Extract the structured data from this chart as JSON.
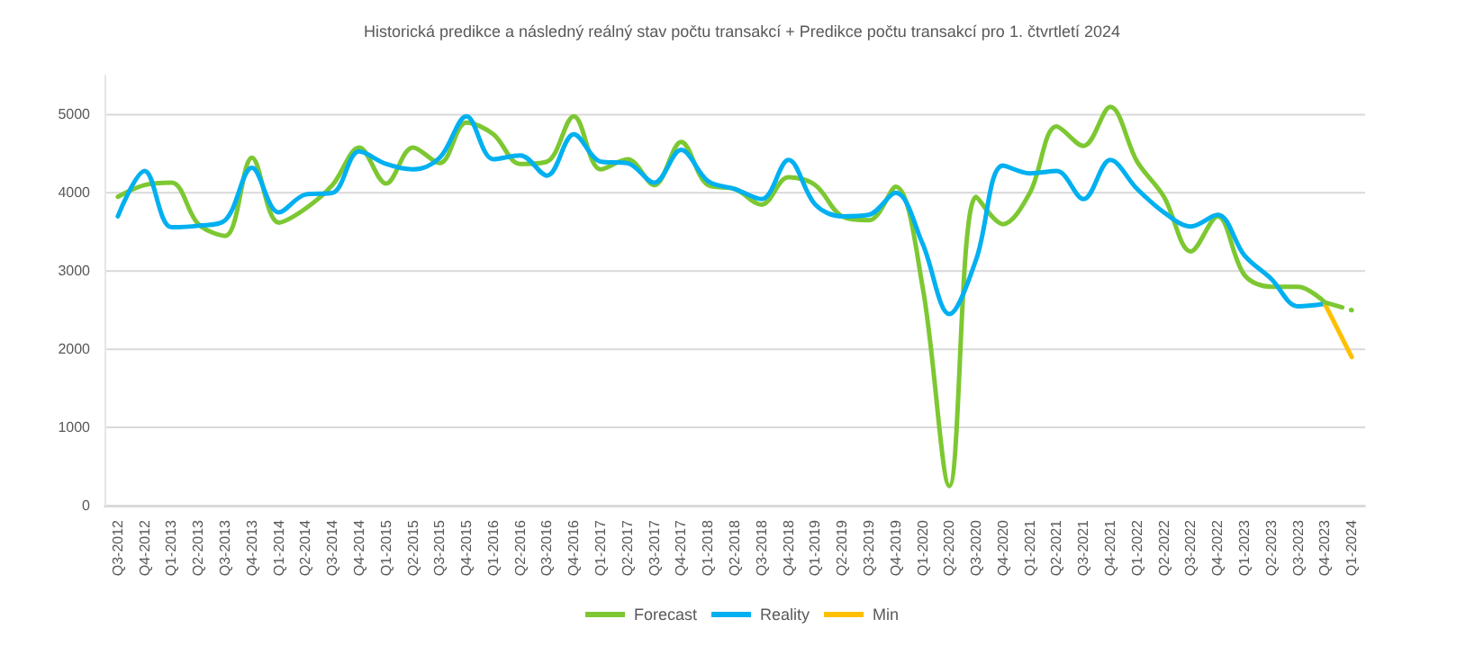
{
  "chart_data": {
    "type": "line",
    "title": "Historická predikce a následný reálný stav počtu transakcí + Predikce počtu transakcí pro 1. čtvrtletí 2024",
    "categories": [
      "Q3-2012",
      "Q4-2012",
      "Q1-2013",
      "Q2-2013",
      "Q3-2013",
      "Q4-2013",
      "Q1-2014",
      "Q2-2014",
      "Q3-2014",
      "Q4-2014",
      "Q1-2015",
      "Q2-2015",
      "Q3-2015",
      "Q4-2015",
      "Q1-2016",
      "Q2-2016",
      "Q3-2016",
      "Q4-2016",
      "Q1-2017",
      "Q2-2017",
      "Q3-2017",
      "Q4-2017",
      "Q1-2018",
      "Q2-2018",
      "Q3-2018",
      "Q4-2018",
      "Q1-2019",
      "Q2-2019",
      "Q3-2019",
      "Q4-2019",
      "Q1-2020",
      "Q2-2020",
      "Q3-2020",
      "Q4-2020",
      "Q1-2021",
      "Q2-2021",
      "Q3-2021",
      "Q4-2021",
      "Q1-2022",
      "Q2-2022",
      "Q3-2022",
      "Q4-2022",
      "Q1-2023",
      "Q2-2023",
      "Q3-2023",
      "Q4-2023",
      "Q1-2024"
    ],
    "series": [
      {
        "name": "Forecast",
        "color": "#7dc832",
        "line_style": "solid",
        "values": [
          3950,
          4100,
          4130,
          3600,
          3450,
          4450,
          3620,
          3800,
          4100,
          4580,
          4120,
          4580,
          4380,
          4900,
          4750,
          4370,
          4400,
          4980,
          4300,
          4430,
          4100,
          4650,
          4100,
          4050,
          3850,
          4200,
          4100,
          3700,
          3650,
          4080,
          2800,
          250,
          3950,
          3600,
          4000,
          4850,
          4600,
          5100,
          4400,
          3950,
          3250,
          3700,
          2950,
          2800,
          2800,
          2600,
          null
        ]
      },
      {
        "name": "Reality",
        "color": "#00b0f0",
        "line_style": "solid",
        "values": [
          3700,
          4280,
          3560,
          3580,
          3650,
          4320,
          3750,
          3980,
          4000,
          4530,
          4370,
          4300,
          4450,
          4980,
          4430,
          4480,
          4220,
          4750,
          4400,
          4380,
          4130,
          4550,
          4150,
          4050,
          3920,
          4420,
          3850,
          3700,
          3720,
          4000,
          3350,
          2450,
          3150,
          4350,
          4250,
          4280,
          3920,
          4420,
          4050,
          3750,
          3570,
          3720,
          3200,
          2900,
          2550,
          2580,
          null
        ]
      },
      {
        "name": "Min",
        "color": "#ffc000",
        "line_style": "solid",
        "values": [
          null,
          null,
          null,
          null,
          null,
          null,
          null,
          null,
          null,
          null,
          null,
          null,
          null,
          null,
          null,
          null,
          null,
          null,
          null,
          null,
          null,
          null,
          null,
          null,
          null,
          null,
          null,
          null,
          null,
          null,
          null,
          null,
          null,
          null,
          null,
          null,
          null,
          null,
          null,
          null,
          null,
          null,
          null,
          null,
          null,
          2580,
          1900
        ]
      },
      {
        "color": "#7dc832",
        "line_style": "dashed",
        "values": [
          null,
          null,
          null,
          null,
          null,
          null,
          null,
          null,
          null,
          null,
          null,
          null,
          null,
          null,
          null,
          null,
          null,
          null,
          null,
          null,
          null,
          null,
          null,
          null,
          null,
          null,
          null,
          null,
          null,
          null,
          null,
          null,
          null,
          null,
          null,
          null,
          null,
          null,
          null,
          null,
          null,
          null,
          null,
          null,
          null,
          2600,
          2500
        ]
      }
    ],
    "ylim": [
      0,
      5500
    ],
    "yticks": [
      0,
      1000,
      2000,
      3000,
      4000,
      5000
    ],
    "grid": "y",
    "legend": "bottom",
    "marker": "none"
  }
}
